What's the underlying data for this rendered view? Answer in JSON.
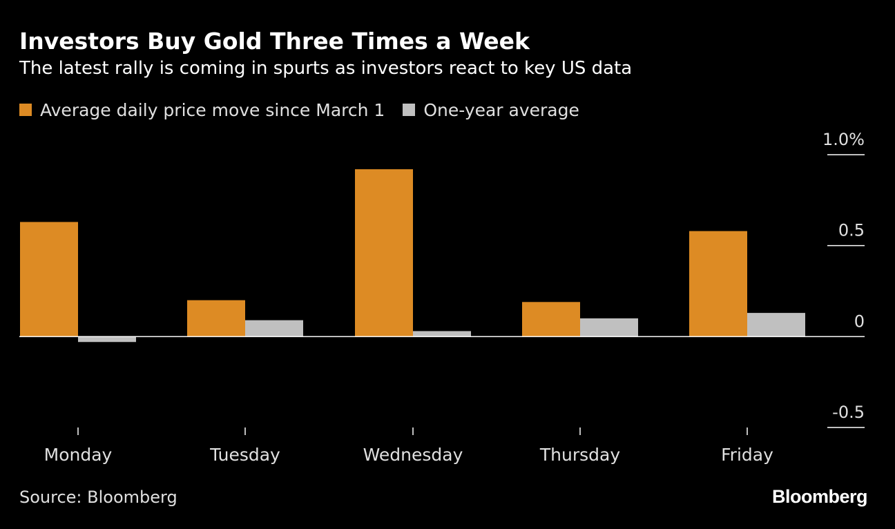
{
  "header": {
    "title": "Investors Buy Gold Three Times a Week",
    "subtitle": "The latest rally is coming in spurts as investors react to key US data"
  },
  "footer": {
    "source": "Source: Bloomberg",
    "brand": "Bloomberg"
  },
  "colors": {
    "background": "#000000",
    "series_march": "#dd8b24",
    "series_year": "#c0c0c0",
    "axis": "#ffffff"
  },
  "chart_data": {
    "type": "bar",
    "title": "Investors Buy Gold Three Times a Week",
    "categories": [
      "Monday",
      "Tuesday",
      "Wednesday",
      "Thursday",
      "Friday"
    ],
    "series": [
      {
        "name": "Average daily price move since March 1",
        "values": [
          0.63,
          0.2,
          0.92,
          0.19,
          0.58
        ]
      },
      {
        "name": "One-year average",
        "values": [
          -0.03,
          0.09,
          0.03,
          0.1,
          0.13
        ]
      }
    ],
    "ylim": [
      -0.5,
      1.0
    ],
    "yticks": [
      1.0,
      0.5,
      0,
      -0.5
    ],
    "ytick_labels": [
      "1.0%",
      "0.5",
      "0",
      "-0.5"
    ],
    "xlabel": "",
    "ylabel": "",
    "legend_position": "top-left",
    "grid": false
  }
}
